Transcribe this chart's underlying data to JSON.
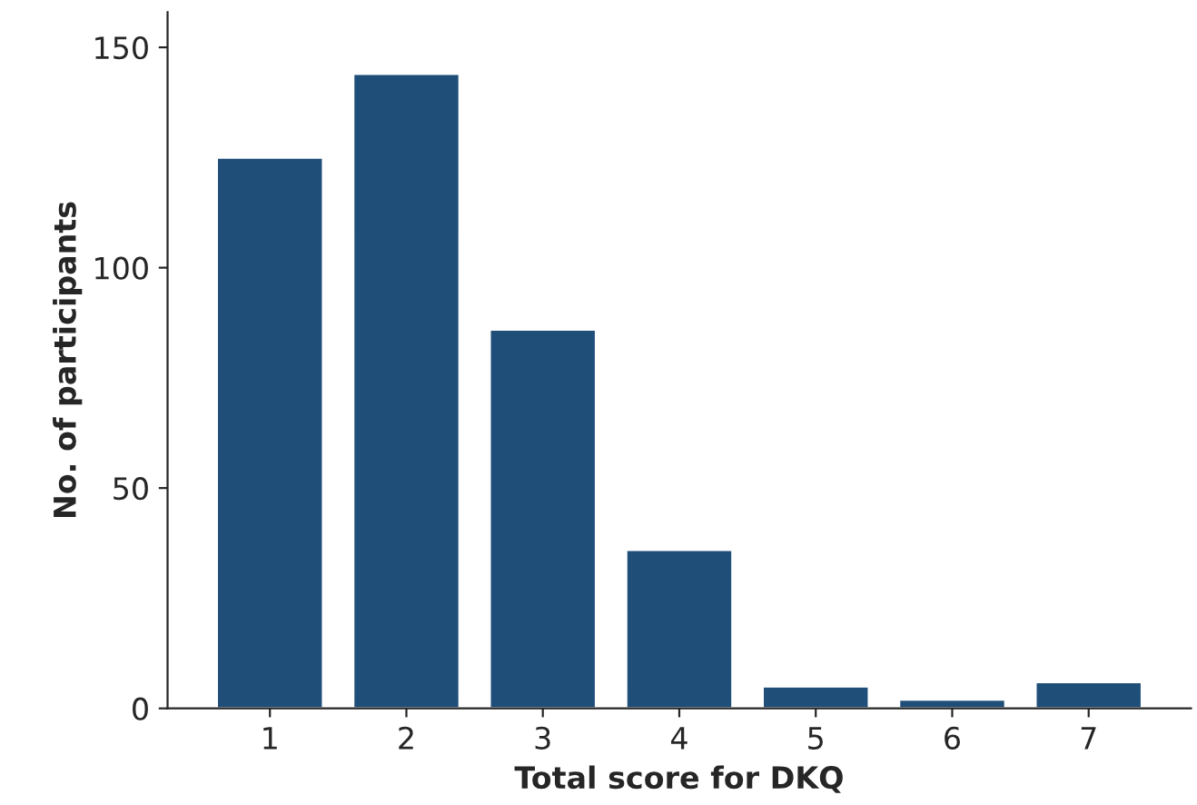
{
  "chart_data": {
    "type": "bar",
    "xlabel": "Total score for DKQ",
    "ylabel": "No. of participants",
    "categories": [
      "1",
      "2",
      "3",
      "4",
      "5",
      "6",
      "7"
    ],
    "values": [
      125,
      144,
      86,
      36,
      5,
      2,
      6
    ],
    "color": "#1f4e79",
    "ylim": [
      0,
      158
    ],
    "yticks": [
      0,
      50,
      100,
      150
    ],
    "grid": false
  }
}
